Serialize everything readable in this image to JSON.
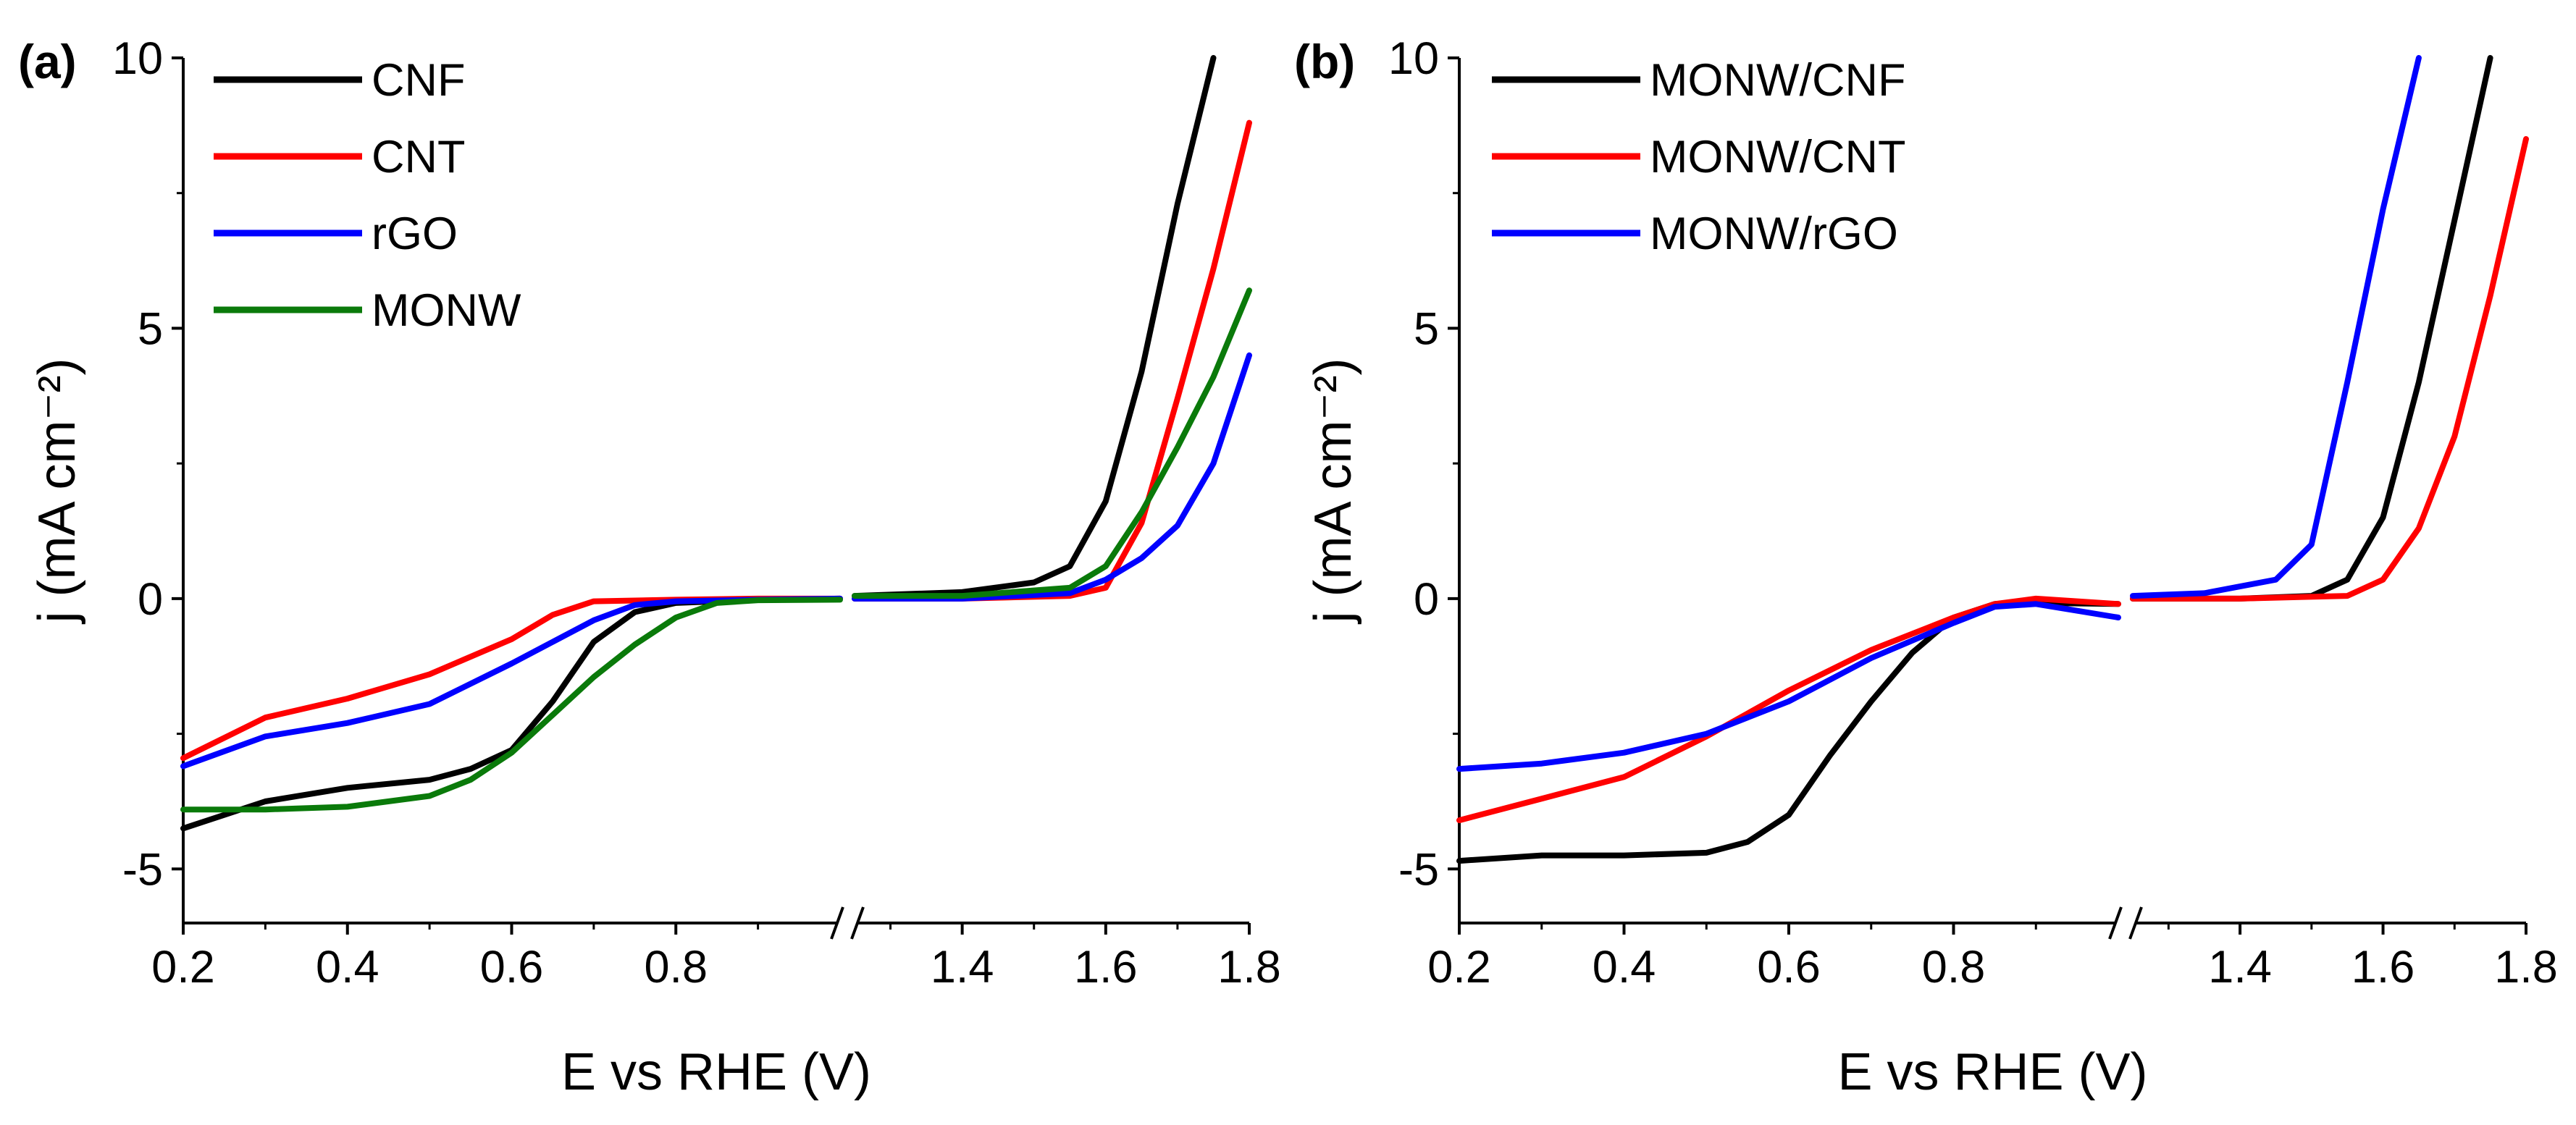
{
  "chart_data": [
    {
      "panel": "(a)",
      "type": "line",
      "xlabel": "E vs RHE (V)",
      "ylabel": "j (mA cm⁻²)",
      "y_ticks": [
        "-5",
        "0",
        "5",
        "10"
      ],
      "x_ticks_left": [
        "0.2",
        "0.4",
        "0.6",
        "0.8"
      ],
      "x_ticks_right": [
        "1.4",
        "1.6",
        "1.8"
      ],
      "ylim": [
        -6,
        10
      ],
      "x_break": {
        "left_range": [
          0.2,
          1.0
        ],
        "right_range": [
          1.25,
          1.8
        ]
      },
      "legend_position": "top-left",
      "series": [
        {
          "name": "CNF",
          "color": "#000000",
          "left": [
            [
              0.2,
              -4.25
            ],
            [
              0.3,
              -3.75
            ],
            [
              0.4,
              -3.5
            ],
            [
              0.5,
              -3.35
            ],
            [
              0.55,
              -3.15
            ],
            [
              0.6,
              -2.8
            ],
            [
              0.65,
              -1.9
            ],
            [
              0.7,
              -0.8
            ],
            [
              0.75,
              -0.25
            ],
            [
              0.8,
              -0.08
            ],
            [
              0.9,
              -0.02
            ],
            [
              1.0,
              0.0
            ]
          ],
          "right": [
            [
              1.25,
              0.05
            ],
            [
              1.4,
              0.12
            ],
            [
              1.5,
              0.3
            ],
            [
              1.55,
              0.6
            ],
            [
              1.6,
              1.8
            ],
            [
              1.65,
              4.2
            ],
            [
              1.7,
              7.3
            ],
            [
              1.75,
              10.2
            ]
          ]
        },
        {
          "name": "CNT",
          "color": "#ff0000",
          "left": [
            [
              0.2,
              -2.95
            ],
            [
              0.3,
              -2.2
            ],
            [
              0.4,
              -1.85
            ],
            [
              0.5,
              -1.4
            ],
            [
              0.6,
              -0.75
            ],
            [
              0.65,
              -0.3
            ],
            [
              0.7,
              -0.05
            ],
            [
              0.8,
              -0.02
            ],
            [
              0.9,
              0.0
            ],
            [
              1.0,
              0.0
            ]
          ],
          "right": [
            [
              1.25,
              0.0
            ],
            [
              1.4,
              0.0
            ],
            [
              1.55,
              0.05
            ],
            [
              1.6,
              0.2
            ],
            [
              1.65,
              1.4
            ],
            [
              1.7,
              3.7
            ],
            [
              1.75,
              6.1
            ],
            [
              1.8,
              8.8
            ]
          ]
        },
        {
          "name": "rGO",
          "color": "#0000ff",
          "left": [
            [
              0.2,
              -3.1
            ],
            [
              0.3,
              -2.55
            ],
            [
              0.4,
              -2.3
            ],
            [
              0.5,
              -1.95
            ],
            [
              0.6,
              -1.2
            ],
            [
              0.7,
              -0.4
            ],
            [
              0.75,
              -0.12
            ],
            [
              0.8,
              -0.05
            ],
            [
              0.9,
              -0.02
            ],
            [
              1.0,
              0.0
            ]
          ],
          "right": [
            [
              1.25,
              0.0
            ],
            [
              1.4,
              0.0
            ],
            [
              1.55,
              0.1
            ],
            [
              1.6,
              0.35
            ],
            [
              1.65,
              0.75
            ],
            [
              1.7,
              1.35
            ],
            [
              1.75,
              2.5
            ],
            [
              1.8,
              4.5
            ]
          ]
        },
        {
          "name": "MONW",
          "color": "#0a7a0a",
          "left": [
            [
              0.2,
              -3.9
            ],
            [
              0.3,
              -3.9
            ],
            [
              0.4,
              -3.85
            ],
            [
              0.5,
              -3.65
            ],
            [
              0.55,
              -3.35
            ],
            [
              0.6,
              -2.85
            ],
            [
              0.65,
              -2.15
            ],
            [
              0.7,
              -1.45
            ],
            [
              0.75,
              -0.85
            ],
            [
              0.8,
              -0.35
            ],
            [
              0.85,
              -0.08
            ],
            [
              0.9,
              -0.03
            ],
            [
              1.0,
              -0.02
            ]
          ],
          "right": [
            [
              1.25,
              0.05
            ],
            [
              1.4,
              0.05
            ],
            [
              1.55,
              0.2
            ],
            [
              1.6,
              0.6
            ],
            [
              1.65,
              1.6
            ],
            [
              1.7,
              2.8
            ],
            [
              1.75,
              4.1
            ],
            [
              1.8,
              5.7
            ]
          ]
        }
      ]
    },
    {
      "panel": "(b)",
      "type": "line",
      "xlabel": "E vs RHE (V)",
      "ylabel": "j (mA cm⁻²)",
      "y_ticks": [
        "-5",
        "0",
        "5",
        "10"
      ],
      "x_ticks_left": [
        "0.2",
        "0.4",
        "0.6",
        "0.8"
      ],
      "x_ticks_right": [
        "1.4",
        "1.6",
        "1.8"
      ],
      "ylim": [
        -6,
        10
      ],
      "x_break": {
        "left_range": [
          0.2,
          1.0
        ],
        "right_range": [
          1.25,
          1.8
        ]
      },
      "legend_position": "top-left",
      "series": [
        {
          "name": "MONW/CNF",
          "color": "#000000",
          "left": [
            [
              0.2,
              -4.85
            ],
            [
              0.3,
              -4.75
            ],
            [
              0.4,
              -4.75
            ],
            [
              0.5,
              -4.7
            ],
            [
              0.55,
              -4.5
            ],
            [
              0.6,
              -4.0
            ],
            [
              0.65,
              -2.9
            ],
            [
              0.7,
              -1.9
            ],
            [
              0.75,
              -1.0
            ],
            [
              0.8,
              -0.35
            ],
            [
              0.85,
              -0.1
            ],
            [
              0.9,
              -0.08
            ],
            [
              1.0,
              -0.1
            ]
          ],
          "right": [
            [
              1.25,
              0.0
            ],
            [
              1.4,
              0.0
            ],
            [
              1.5,
              0.05
            ],
            [
              1.55,
              0.35
            ],
            [
              1.6,
              1.5
            ],
            [
              1.65,
              4.0
            ],
            [
              1.7,
              7.0
            ],
            [
              1.75,
              10.2
            ]
          ]
        },
        {
          "name": "MONW/CNT",
          "color": "#ff0000",
          "left": [
            [
              0.2,
              -4.1
            ],
            [
              0.3,
              -3.7
            ],
            [
              0.4,
              -3.3
            ],
            [
              0.5,
              -2.55
            ],
            [
              0.6,
              -1.7
            ],
            [
              0.7,
              -0.95
            ],
            [
              0.8,
              -0.35
            ],
            [
              0.85,
              -0.1
            ],
            [
              0.9,
              0.0
            ],
            [
              1.0,
              -0.1
            ]
          ],
          "right": [
            [
              1.25,
              0.0
            ],
            [
              1.4,
              0.0
            ],
            [
              1.55,
              0.05
            ],
            [
              1.6,
              0.35
            ],
            [
              1.65,
              1.3
            ],
            [
              1.7,
              3.0
            ],
            [
              1.75,
              5.6
            ],
            [
              1.8,
              8.5
            ]
          ]
        },
        {
          "name": "MONW/rGO",
          "color": "#0000ff",
          "left": [
            [
              0.2,
              -3.15
            ],
            [
              0.3,
              -3.05
            ],
            [
              0.4,
              -2.85
            ],
            [
              0.5,
              -2.5
            ],
            [
              0.6,
              -1.9
            ],
            [
              0.7,
              -1.1
            ],
            [
              0.8,
              -0.45
            ],
            [
              0.85,
              -0.15
            ],
            [
              0.9,
              -0.1
            ],
            [
              1.0,
              -0.35
            ]
          ],
          "right": [
            [
              1.25,
              0.05
            ],
            [
              1.35,
              0.1
            ],
            [
              1.45,
              0.35
            ],
            [
              1.5,
              1.0
            ],
            [
              1.55,
              4.0
            ],
            [
              1.6,
              7.2
            ],
            [
              1.65,
              10.2
            ]
          ]
        }
      ]
    }
  ]
}
